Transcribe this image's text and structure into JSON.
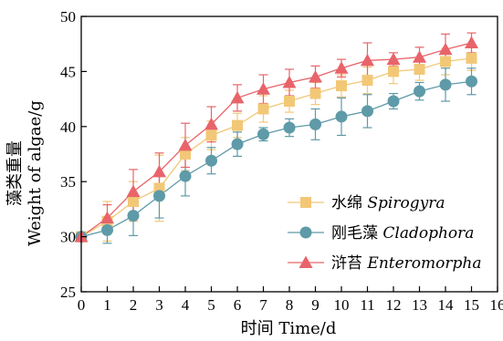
{
  "chart_data": {
    "type": "line",
    "xlabel": "时间 Time/d",
    "ylabel_cn": "藻类重量",
    "ylabel_en": "Weight of algae/g",
    "xlim": [
      0,
      16
    ],
    "ylim": [
      25,
      50
    ],
    "xticks": [
      0,
      1,
      2,
      3,
      4,
      5,
      6,
      7,
      8,
      9,
      10,
      11,
      12,
      13,
      14,
      15,
      16
    ],
    "yticks": [
      25,
      30,
      35,
      40,
      45,
      50
    ],
    "grid": false,
    "legend_position": "lower-right",
    "x": [
      0,
      1,
      2,
      3,
      4,
      5,
      6,
      7,
      8,
      9,
      10,
      11,
      12,
      13,
      14,
      15
    ],
    "series": [
      {
        "name_cn": "水绵",
        "name_latin": "Spirogyra",
        "marker": "square",
        "color": "#f2c877",
        "values": [
          30.0,
          31.4,
          33.2,
          34.4,
          37.5,
          39.2,
          40.1,
          41.6,
          42.3,
          43.0,
          43.7,
          44.2,
          45.0,
          45.2,
          45.9,
          46.2
        ],
        "errors": [
          0.3,
          1.8,
          1.8,
          3.0,
          1.5,
          1.3,
          1.1,
          1.2,
          1.0,
          1.0,
          1.0,
          1.2,
          1.1,
          1.0,
          1.2,
          1.1
        ]
      },
      {
        "name_cn": "刚毛藻",
        "name_latin": "Cladophora",
        "marker": "circle",
        "color": "#5e9aa8",
        "values": [
          30.0,
          30.6,
          31.9,
          33.7,
          35.5,
          36.9,
          38.4,
          39.3,
          39.9,
          40.2,
          40.9,
          41.4,
          42.3,
          43.2,
          43.8,
          44.1
        ],
        "errors": [
          0.3,
          1.2,
          1.8,
          2.0,
          1.8,
          1.2,
          1.1,
          0.6,
          0.8,
          1.4,
          1.7,
          1.5,
          0.7,
          0.8,
          1.5,
          1.2
        ]
      },
      {
        "name_cn": "浒苔",
        "name_latin": "Enteromorpha",
        "marker": "triangle",
        "color": "#e8646a",
        "values": [
          30.0,
          31.7,
          34.1,
          35.9,
          38.3,
          40.2,
          42.6,
          43.4,
          44.0,
          44.5,
          45.3,
          46.0,
          46.1,
          46.3,
          47.0,
          47.6
        ],
        "errors": [
          0.3,
          1.2,
          2.0,
          1.7,
          2.0,
          1.6,
          1.2,
          1.3,
          1.2,
          1.0,
          0.8,
          1.6,
          0.6,
          0.9,
          1.4,
          0.9
        ]
      }
    ]
  }
}
